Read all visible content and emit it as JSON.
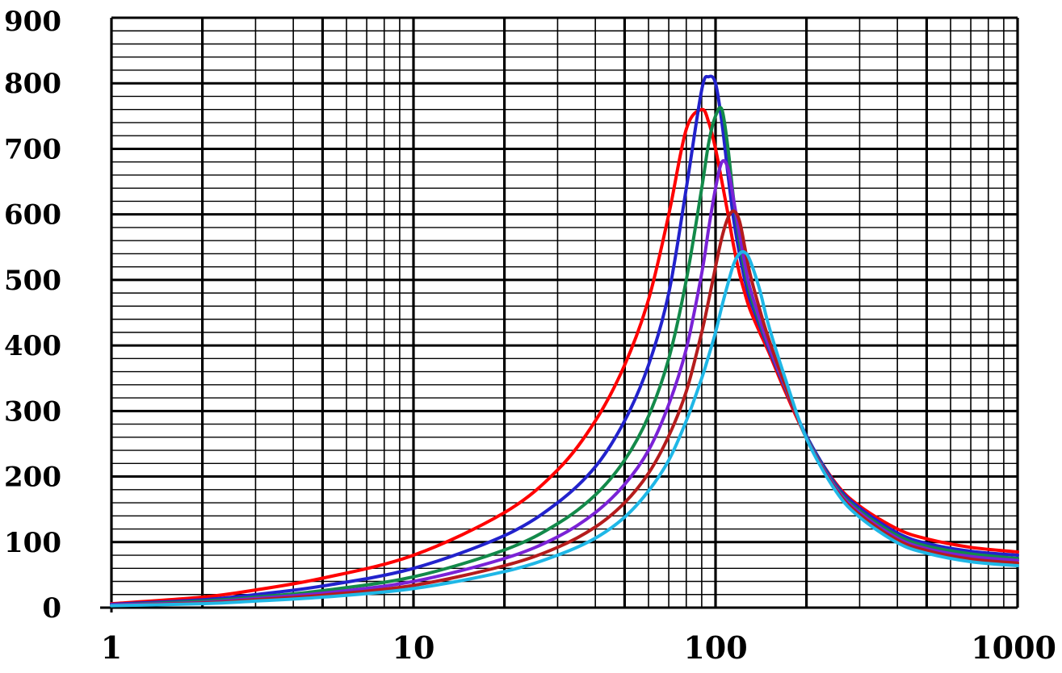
{
  "chart_data": {
    "type": "line",
    "title": "",
    "xlabel": "",
    "ylabel": "",
    "x_scale": "log",
    "xlim": [
      1,
      1000
    ],
    "ylim": [
      0,
      900
    ],
    "grid": true,
    "legend": "none",
    "x_tick_labels": [
      "1",
      "10",
      "100",
      "1000"
    ],
    "y_tick_labels": [
      "0",
      "100",
      "200",
      "300",
      "400",
      "500",
      "600",
      "700",
      "800",
      "900"
    ],
    "x": [
      1,
      2,
      3,
      5,
      10,
      20,
      30,
      40,
      50,
      60,
      70,
      80,
      90,
      95,
      100,
      105,
      110,
      115,
      120,
      125,
      130,
      140,
      150,
      170,
      200,
      250,
      300,
      400,
      500,
      700,
      1000
    ],
    "series": [
      {
        "color": "#ff0000",
        "values": [
          6,
          16,
          27,
          45,
          80,
          145,
          210,
          285,
          370,
          470,
          600,
          730,
          760,
          740,
          700,
          650,
          600,
          550,
          510,
          480,
          455,
          420,
          390,
          330,
          260,
          190,
          155,
          120,
          105,
          92,
          85
        ]
      },
      {
        "color": "#2222cc",
        "values": [
          5,
          12,
          20,
          33,
          60,
          110,
          160,
          215,
          285,
          370,
          480,
          640,
          790,
          810,
          800,
          740,
          660,
          590,
          540,
          500,
          470,
          430,
          395,
          335,
          262,
          188,
          152,
          114,
          98,
          86,
          80
        ]
      },
      {
        "color": "#138a4a",
        "values": [
          4,
          10,
          16,
          26,
          47,
          88,
          128,
          172,
          225,
          292,
          380,
          500,
          640,
          710,
          750,
          760,
          700,
          620,
          560,
          515,
          480,
          435,
          398,
          336,
          260,
          185,
          148,
          110,
          94,
          82,
          75
        ]
      },
      {
        "color": "#7a22d6",
        "values": [
          4,
          8,
          14,
          22,
          40,
          75,
          108,
          145,
          188,
          240,
          310,
          395,
          510,
          580,
          640,
          680,
          670,
          620,
          570,
          525,
          488,
          440,
          400,
          337,
          259,
          183,
          145,
          106,
          90,
          78,
          72
        ]
      },
      {
        "color": "#b51c1c",
        "values": [
          3,
          7,
          12,
          19,
          34,
          64,
          92,
          123,
          160,
          205,
          262,
          330,
          420,
          470,
          520,
          565,
          595,
          605,
          590,
          550,
          510,
          455,
          410,
          340,
          258,
          180,
          142,
          103,
          87,
          74,
          68
        ]
      },
      {
        "color": "#1fb7e6",
        "values": [
          3,
          6,
          10,
          16,
          29,
          55,
          80,
          106,
          138,
          178,
          225,
          285,
          350,
          385,
          420,
          460,
          495,
          525,
          540,
          542,
          530,
          485,
          430,
          350,
          258,
          178,
          138,
          99,
          83,
          70,
          64
        ]
      }
    ]
  }
}
